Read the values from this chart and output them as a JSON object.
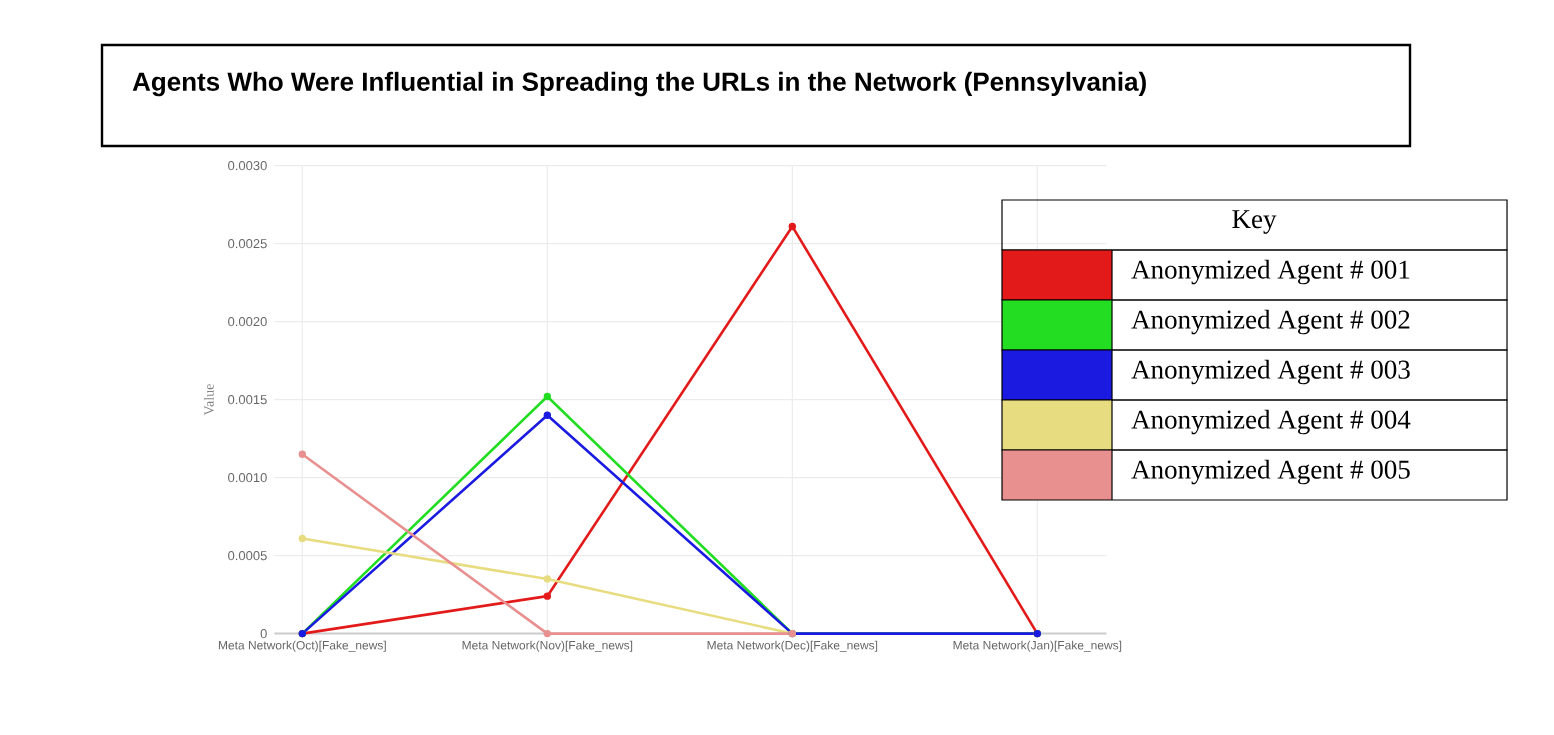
{
  "chart_data": {
    "type": "line",
    "title": "Agents Who Were Influential in Spreading the URLs in the Network (Pennsylvania)",
    "ylabel": "Value",
    "legend_title": "Key",
    "categories": [
      "Meta Network(Oct)[Fake_news]",
      "Meta Network(Nov)[Fake_news]",
      "Meta Network(Dec)[Fake_news]",
      "Meta Network(Jan)[Fake_news]"
    ],
    "series": [
      {
        "name": "Anonymized Agent # 001",
        "color": "#e31a1a",
        "values": [
          0,
          0.00024,
          0.00261,
          0
        ]
      },
      {
        "name": "Anonymized Agent # 002",
        "color": "#22dd22",
        "values": [
          0,
          0.00152,
          0,
          0
        ]
      },
      {
        "name": "Anonymized Agent # 003",
        "color": "#1a1ae0",
        "values": [
          0,
          0.0014,
          0,
          0
        ]
      },
      {
        "name": "Anonymized Agent # 004",
        "color": "#e8dc80",
        "values": [
          0.00061,
          0.00035,
          0,
          null
        ]
      },
      {
        "name": "Anonymized Agent # 005",
        "color": "#e89090",
        "values": [
          0.00115,
          0,
          0,
          null
        ]
      }
    ],
    "ylim": [
      0,
      0.003
    ],
    "yticks": [
      0,
      0.0005,
      {
        "value": 0.001,
        "label": "0.0010"
      },
      0.0015,
      {
        "value": 0.002,
        "label": "0.0020"
      },
      0.0025,
      {
        "value": 0.003,
        "label": "0.0030"
      }
    ],
    "grid": true,
    "legend": "right",
    "marker": "circle",
    "line_style": "solid"
  }
}
